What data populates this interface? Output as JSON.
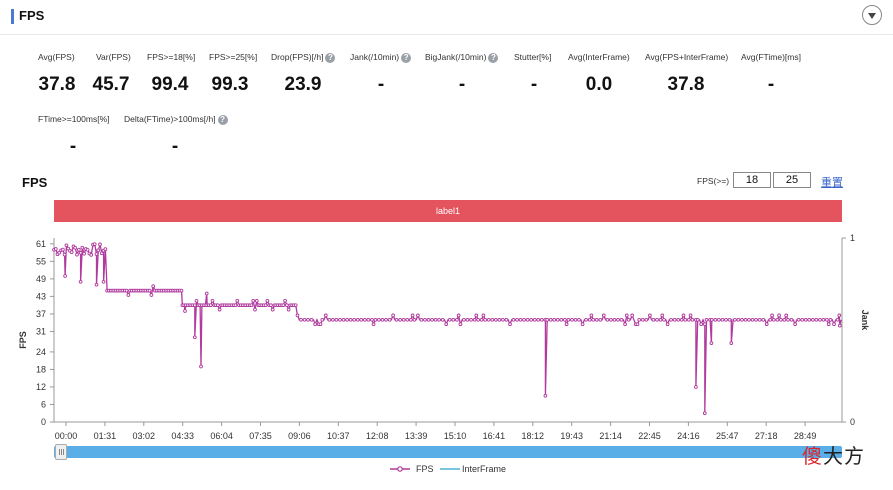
{
  "page": {
    "title": "FPS"
  },
  "metrics": [
    {
      "label": "Avg(FPS)",
      "value": "37.8",
      "help": false
    },
    {
      "label": "Var(FPS)",
      "value": "45.7",
      "help": false
    },
    {
      "label": "FPS>=18[%]",
      "value": "99.4",
      "help": false
    },
    {
      "label": "FPS>=25[%]",
      "value": "99.3",
      "help": false
    },
    {
      "label": "Drop(FPS)[/h]",
      "value": "23.9",
      "help": true
    },
    {
      "label": "Jank(/10min)",
      "value": "-",
      "help": true
    },
    {
      "label": "BigJank(/10min)",
      "value": "-",
      "help": true
    },
    {
      "label": "Stutter[%]",
      "value": "-",
      "help": false
    },
    {
      "label": "Avg(InterFrame)",
      "value": "0.0",
      "help": false
    },
    {
      "label": "Avg(FPS+InterFrame)",
      "value": "37.8",
      "help": false
    },
    {
      "label": "Avg(FTime)[ms]",
      "value": "-",
      "help": false
    },
    {
      "label": "FTime>=100ms[%]",
      "value": "-",
      "help": false
    },
    {
      "label": "Delta(FTime)>100ms[/h]",
      "value": "-",
      "help": true
    }
  ],
  "help_glyph": "?",
  "chart_section": {
    "title": "FPS",
    "filter_label": "FPS(>=)",
    "threshold_low": "18",
    "threshold_high": "25",
    "reset_label": "重置",
    "label_band": "label1"
  },
  "chart_data": {
    "type": "line",
    "y_axis_label": "FPS",
    "y2_axis_label": "Jank",
    "y_ticks": [
      0,
      6,
      12,
      18,
      24,
      31,
      37,
      43,
      49,
      55,
      61
    ],
    "y2_ticks": [
      0,
      1
    ],
    "ylim": [
      0,
      63
    ],
    "x_tick_labels": [
      "00:00",
      "01:31",
      "03:02",
      "04:33",
      "06:04",
      "07:35",
      "09:06",
      "10:37",
      "12:08",
      "13:39",
      "15:10",
      "16:41",
      "18:12",
      "19:43",
      "21:14",
      "22:45",
      "24:16",
      "25:47",
      "27:18",
      "28:49"
    ],
    "x_unit": "seconds",
    "xlim": [
      0,
      1780
    ],
    "grid": false,
    "legend_position": "bottom",
    "series": [
      {
        "name": "FPS",
        "color": "#b03a9e",
        "baseline_segments": [
          {
            "x_start": 0,
            "x_end": 120,
            "value": 59
          },
          {
            "x_start": 120,
            "x_end": 290,
            "value": 45
          },
          {
            "x_start": 290,
            "x_end": 350,
            "value": 40
          },
          {
            "x_start": 350,
            "x_end": 550,
            "value": 40
          },
          {
            "x_start": 550,
            "x_end": 1780,
            "value": 35
          }
        ],
        "dips": [
          {
            "x": 25,
            "value": 50
          },
          {
            "x": 60,
            "value": 48
          },
          {
            "x": 96,
            "value": 47
          },
          {
            "x": 112,
            "value": 48
          },
          {
            "x": 296,
            "value": 38
          },
          {
            "x": 318,
            "value": 29
          },
          {
            "x": 332,
            "value": 19
          },
          {
            "x": 345,
            "value": 44
          },
          {
            "x": 1110,
            "value": 9
          },
          {
            "x": 1450,
            "value": 12
          },
          {
            "x": 1470,
            "value": 3
          },
          {
            "x": 1485,
            "value": 27
          },
          {
            "x": 1530,
            "value": 27
          },
          {
            "x": 1775,
            "value": 33
          }
        ]
      },
      {
        "name": "InterFrame",
        "color": "#4cb3d6",
        "values": []
      }
    ]
  },
  "legend": {
    "fps": "FPS",
    "interframe": "InterFrame"
  },
  "watermark": {
    "first": "傻",
    "rest": "大方"
  },
  "colors": {
    "accent": "#4a7bd0",
    "band": "#e4545f",
    "fps_line": "#b03a9e",
    "interframe_line": "#4cb3d6",
    "scrollbar": "#5aaee8",
    "link": "#3a66c8"
  }
}
